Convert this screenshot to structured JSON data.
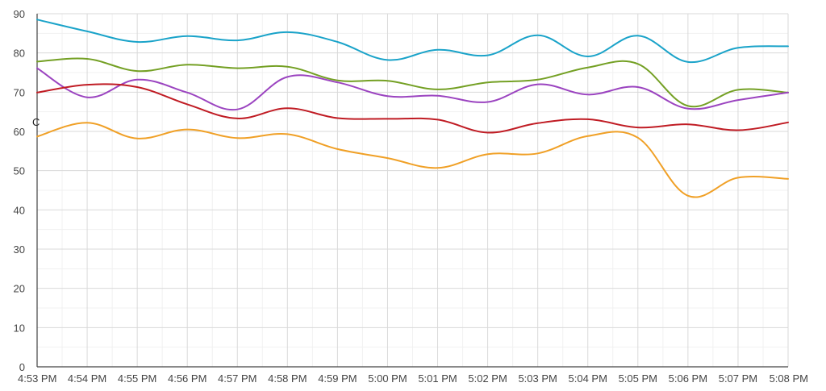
{
  "chart_data": {
    "type": "line",
    "unit_label": "C",
    "categories": [
      "4:53 PM",
      "4:54 PM",
      "4:55 PM",
      "4:56 PM",
      "4:57 PM",
      "4:58 PM",
      "4:59 PM",
      "5:00 PM",
      "5:01 PM",
      "5:02 PM",
      "5:03 PM",
      "5:04 PM",
      "5:05 PM",
      "5:06 PM",
      "5:07 PM",
      "5:08 PM"
    ],
    "ylim": [
      0,
      90
    ],
    "yticks": [
      0,
      10,
      20,
      30,
      40,
      50,
      60,
      70,
      80,
      90
    ],
    "grid": true,
    "series": [
      {
        "color": "#1aa3c9",
        "values": [
          88.5,
          85.5,
          82.8,
          84.3,
          83.2,
          85.3,
          82.8,
          78.2,
          80.8,
          79.4,
          84.5,
          79.1,
          84.4,
          77.7,
          81.3,
          81.7
        ]
      },
      {
        "color": "#74a024",
        "values": [
          77.8,
          78.5,
          75.4,
          77.0,
          76.1,
          76.5,
          73.0,
          72.9,
          70.7,
          72.5,
          73.2,
          76.3,
          77.2,
          66.5,
          70.6,
          69.9
        ]
      },
      {
        "color": "#9b44c0",
        "values": [
          76.1,
          68.7,
          73.2,
          69.9,
          65.6,
          73.9,
          72.5,
          69.0,
          69.1,
          67.5,
          72.0,
          69.4,
          71.3,
          65.8,
          68.0,
          69.9
        ]
      },
      {
        "color": "#c01c24",
        "values": [
          69.9,
          71.9,
          71.3,
          66.9,
          63.3,
          65.9,
          63.4,
          63.2,
          63.0,
          59.7,
          62.1,
          63.1,
          61.0,
          61.8,
          60.3,
          62.3
        ]
      },
      {
        "color": "#f0a026",
        "values": [
          58.7,
          62.2,
          58.2,
          60.5,
          58.3,
          59.3,
          55.5,
          53.2,
          50.7,
          54.2,
          54.4,
          58.8,
          58.4,
          43.6,
          48.2,
          47.9
        ]
      }
    ]
  }
}
